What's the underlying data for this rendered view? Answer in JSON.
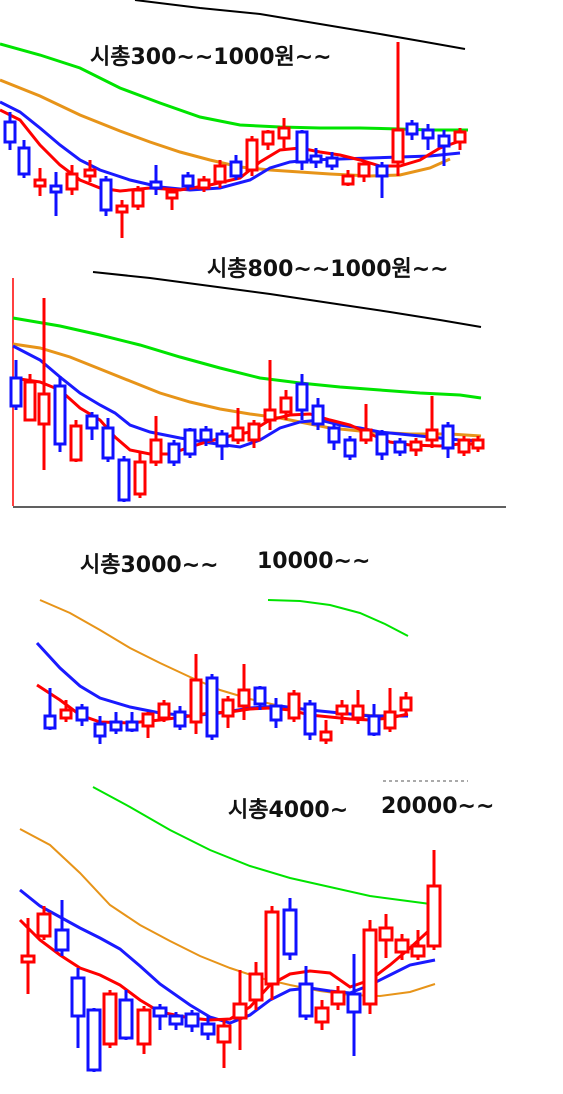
{
  "chart_data": [
    {
      "type": "candlestick",
      "title": "시총300~~1000원~~",
      "colors": {
        "up": "#ff0000",
        "down": "#1010ff",
        "ma_fast": "#ff0000",
        "ma_blue": "#1a1aff",
        "ma_orange": "#e79419",
        "ma_green": "#00e400",
        "ma_black": "#000000"
      }
    },
    {
      "type": "candlestick",
      "title": "시총800~~1000원~~"
    },
    {
      "type": "candlestick",
      "title": "시총3000~~",
      "subtitle": "10000~~"
    },
    {
      "type": "candlestick",
      "title": "시총4000~",
      "subtitle": "20000~~"
    }
  ]
}
